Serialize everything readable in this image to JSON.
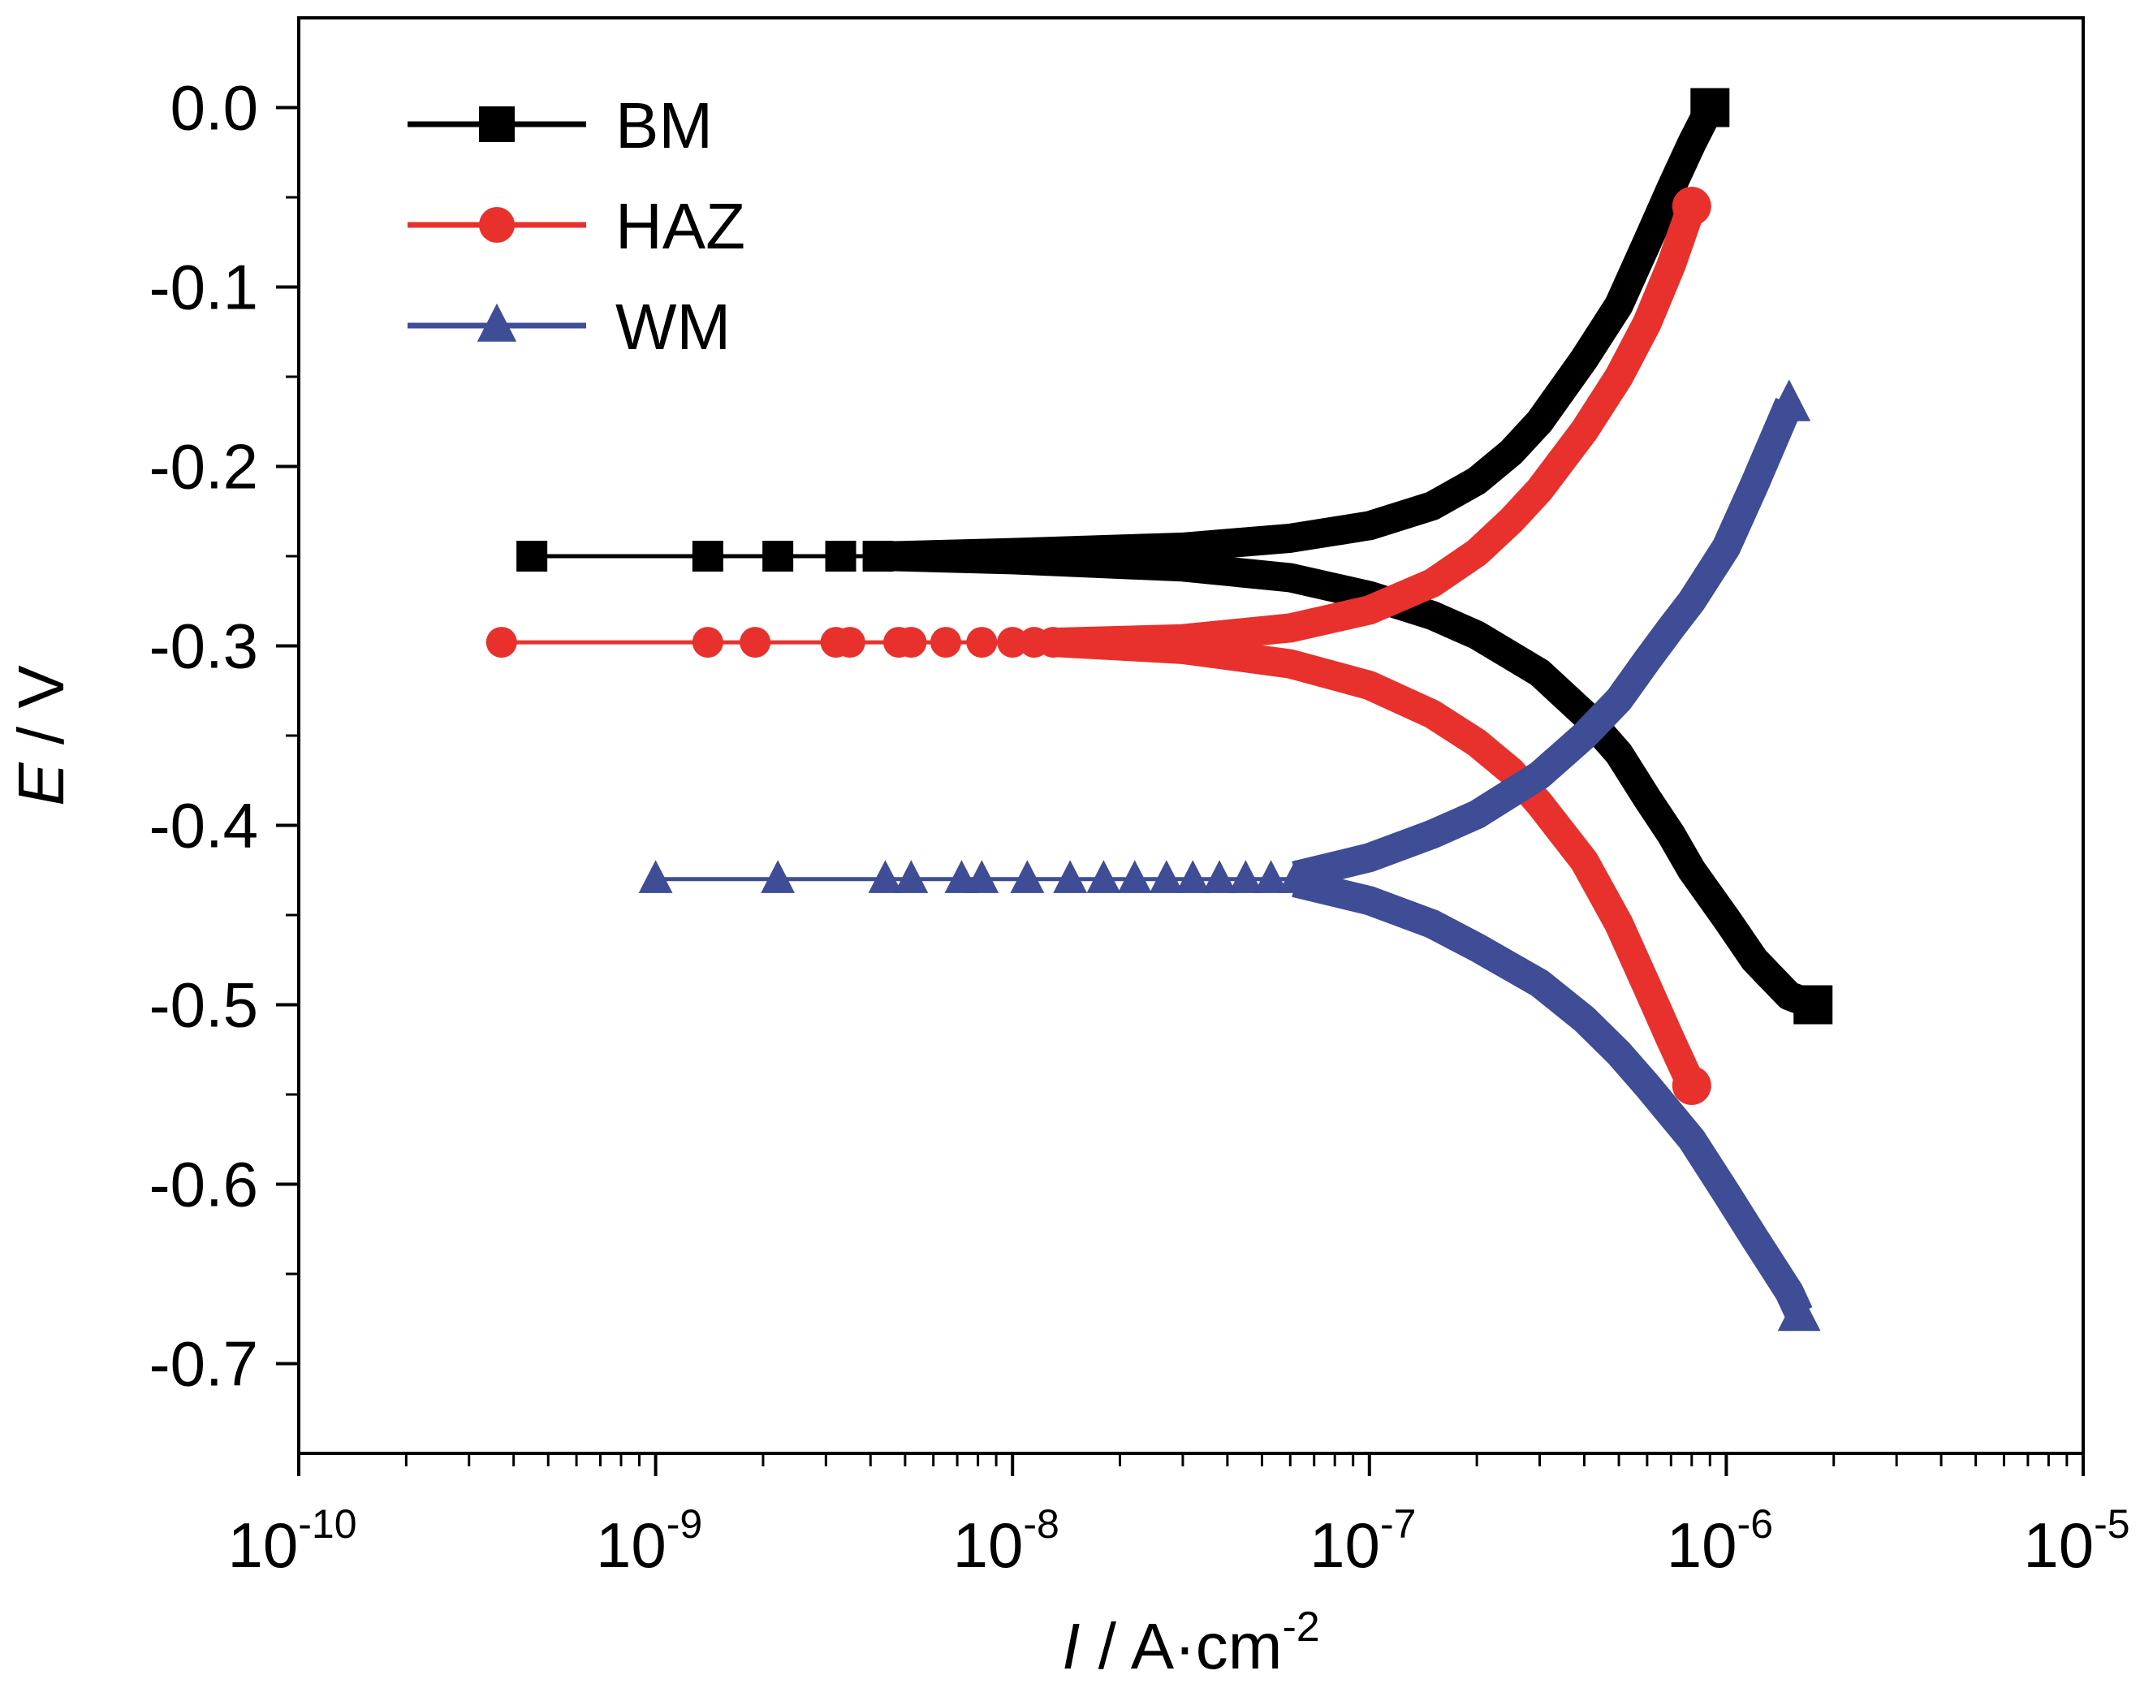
{
  "chart_data": {
    "type": "line",
    "xscale": "log",
    "xlim": [
      1e-10,
      1e-05
    ],
    "ylim": [
      -0.75,
      0.05
    ],
    "xlabel": {
      "italic": "I",
      "text": " / A·cm",
      "sup": "-2"
    },
    "ylabel": {
      "italic": "E",
      "text": " / V"
    },
    "x_ticks": [
      {
        "base": "10",
        "exp": "-10",
        "value": 1e-10
      },
      {
        "base": "10",
        "exp": "-9",
        "value": 1e-09
      },
      {
        "base": "10",
        "exp": "-8",
        "value": 1e-08
      },
      {
        "base": "10",
        "exp": "-7",
        "value": 1e-07
      },
      {
        "base": "10",
        "exp": "-6",
        "value": 1e-06
      },
      {
        "base": "10",
        "exp": "-5",
        "value": 1e-05
      }
    ],
    "y_ticks": [
      {
        "label": "0.0",
        "value": 0.0
      },
      {
        "label": "-0.1",
        "value": -0.1
      },
      {
        "label": "-0.2",
        "value": -0.2
      },
      {
        "label": "-0.3",
        "value": -0.3
      },
      {
        "label": "-0.4",
        "value": -0.4
      },
      {
        "label": "-0.5",
        "value": -0.5
      },
      {
        "label": "-0.6",
        "value": -0.6
      },
      {
        "label": "-0.7",
        "value": -0.7
      }
    ],
    "legend": {
      "placement": "top-left"
    },
    "series": [
      {
        "name": "BM",
        "color": "#000000",
        "marker": "square",
        "markers": [
          {
            "x": 4.5e-10,
            "y": -0.25
          },
          {
            "x": 1.4e-09,
            "y": -0.25
          },
          {
            "x": 2.2e-09,
            "y": -0.25
          },
          {
            "x": 3.3e-09,
            "y": -0.25
          },
          {
            "x": 4.2e-09,
            "y": -0.25
          }
        ],
        "anodic": [
          {
            "x": 4.2e-09,
            "y": -0.25
          },
          {
            "x": 1e-08,
            "y": -0.248
          },
          {
            "x": 3e-08,
            "y": -0.245
          },
          {
            "x": 6e-08,
            "y": -0.24
          },
          {
            "x": 1e-07,
            "y": -0.233
          },
          {
            "x": 1.5e-07,
            "y": -0.222
          },
          {
            "x": 2e-07,
            "y": -0.208
          },
          {
            "x": 2.5e-07,
            "y": -0.192
          },
          {
            "x": 3e-07,
            "y": -0.175
          },
          {
            "x": 4e-07,
            "y": -0.14
          },
          {
            "x": 5e-07,
            "y": -0.11
          },
          {
            "x": 6e-07,
            "y": -0.075
          },
          {
            "x": 7e-07,
            "y": -0.045
          },
          {
            "x": 8e-07,
            "y": -0.02
          },
          {
            "x": 9e-07,
            "y": 0.0
          }
        ],
        "cathodic": [
          {
            "x": 4.2e-09,
            "y": -0.25
          },
          {
            "x": 1e-08,
            "y": -0.252
          },
          {
            "x": 3e-08,
            "y": -0.256
          },
          {
            "x": 6e-08,
            "y": -0.262
          },
          {
            "x": 1e-07,
            "y": -0.272
          },
          {
            "x": 1.5e-07,
            "y": -0.283
          },
          {
            "x": 2e-07,
            "y": -0.294
          },
          {
            "x": 3e-07,
            "y": -0.315
          },
          {
            "x": 4e-07,
            "y": -0.338
          },
          {
            "x": 5e-07,
            "y": -0.36
          },
          {
            "x": 6e-07,
            "y": -0.385
          },
          {
            "x": 7e-07,
            "y": -0.405
          },
          {
            "x": 8e-07,
            "y": -0.425
          },
          {
            "x": 1e-06,
            "y": -0.452
          },
          {
            "x": 1.2e-06,
            "y": -0.475
          },
          {
            "x": 1.5e-06,
            "y": -0.495
          },
          {
            "x": 1.75e-06,
            "y": -0.5
          }
        ]
      },
      {
        "name": "HAZ",
        "color": "#e8312c",
        "marker": "circle",
        "markers": [
          {
            "x": 3.7e-10,
            "y": -0.298
          },
          {
            "x": 1.4e-09,
            "y": -0.298
          },
          {
            "x": 1.9e-09,
            "y": -0.298
          },
          {
            "x": 3.2e-09,
            "y": -0.298
          },
          {
            "x": 3.5e-09,
            "y": -0.298
          },
          {
            "x": 4.8e-09,
            "y": -0.298
          },
          {
            "x": 5.2e-09,
            "y": -0.298
          },
          {
            "x": 6.5e-09,
            "y": -0.298
          },
          {
            "x": 8.2e-09,
            "y": -0.298
          },
          {
            "x": 1e-08,
            "y": -0.298
          },
          {
            "x": 1.15e-08,
            "y": -0.298
          },
          {
            "x": 1.3e-08,
            "y": -0.298
          }
        ],
        "anodic": [
          {
            "x": 1.3e-08,
            "y": -0.298
          },
          {
            "x": 3e-08,
            "y": -0.296
          },
          {
            "x": 6e-08,
            "y": -0.29
          },
          {
            "x": 1e-07,
            "y": -0.28
          },
          {
            "x": 1.5e-07,
            "y": -0.265
          },
          {
            "x": 2e-07,
            "y": -0.248
          },
          {
            "x": 2.5e-07,
            "y": -0.23
          },
          {
            "x": 3e-07,
            "y": -0.213
          },
          {
            "x": 4e-07,
            "y": -0.18
          },
          {
            "x": 5e-07,
            "y": -0.15
          },
          {
            "x": 6e-07,
            "y": -0.12
          },
          {
            "x": 7e-07,
            "y": -0.088
          },
          {
            "x": 8e-07,
            "y": -0.055
          }
        ],
        "cathodic": [
          {
            "x": 1.3e-08,
            "y": -0.298
          },
          {
            "x": 3e-08,
            "y": -0.302
          },
          {
            "x": 6e-08,
            "y": -0.31
          },
          {
            "x": 1e-07,
            "y": -0.322
          },
          {
            "x": 1.5e-07,
            "y": -0.338
          },
          {
            "x": 2e-07,
            "y": -0.354
          },
          {
            "x": 2.5e-07,
            "y": -0.37
          },
          {
            "x": 3e-07,
            "y": -0.388
          },
          {
            "x": 4e-07,
            "y": -0.42
          },
          {
            "x": 5e-07,
            "y": -0.455
          },
          {
            "x": 6e-07,
            "y": -0.49
          },
          {
            "x": 7e-07,
            "y": -0.52
          },
          {
            "x": 8e-07,
            "y": -0.545
          }
        ]
      },
      {
        "name": "WM",
        "color": "#3f4c96",
        "marker": "triangle",
        "markers": [
          {
            "x": 1e-09,
            "y": -0.43
          },
          {
            "x": 2.2e-09,
            "y": -0.43
          },
          {
            "x": 4.4e-09,
            "y": -0.43
          },
          {
            "x": 5.2e-09,
            "y": -0.43
          },
          {
            "x": 7.2e-09,
            "y": -0.43
          },
          {
            "x": 8.2e-09,
            "y": -0.43
          },
          {
            "x": 1.1e-08,
            "y": -0.43
          },
          {
            "x": 1.45e-08,
            "y": -0.43
          },
          {
            "x": 1.8e-08,
            "y": -0.43
          },
          {
            "x": 2.2e-08,
            "y": -0.43
          },
          {
            "x": 2.7e-08,
            "y": -0.43
          },
          {
            "x": 3.2e-08,
            "y": -0.43
          },
          {
            "x": 3.8e-08,
            "y": -0.43
          },
          {
            "x": 4.5e-08,
            "y": -0.43
          },
          {
            "x": 5.3e-08,
            "y": -0.43
          },
          {
            "x": 6.2e-08,
            "y": -0.43
          }
        ],
        "anodic": [
          {
            "x": 6.2e-08,
            "y": -0.428
          },
          {
            "x": 1e-07,
            "y": -0.418
          },
          {
            "x": 1.5e-07,
            "y": -0.405
          },
          {
            "x": 2e-07,
            "y": -0.394
          },
          {
            "x": 3e-07,
            "y": -0.372
          },
          {
            "x": 4e-07,
            "y": -0.35
          },
          {
            "x": 5e-07,
            "y": -0.33
          },
          {
            "x": 6e-07,
            "y": -0.308
          },
          {
            "x": 7e-07,
            "y": -0.29
          },
          {
            "x": 8e-07,
            "y": -0.275
          },
          {
            "x": 1e-06,
            "y": -0.245
          },
          {
            "x": 1.2e-06,
            "y": -0.21
          },
          {
            "x": 1.5e-06,
            "y": -0.165
          }
        ],
        "cathodic": [
          {
            "x": 6.2e-08,
            "y": -0.432
          },
          {
            "x": 1e-07,
            "y": -0.442
          },
          {
            "x": 1.5e-07,
            "y": -0.455
          },
          {
            "x": 2e-07,
            "y": -0.468
          },
          {
            "x": 3e-07,
            "y": -0.488
          },
          {
            "x": 4e-07,
            "y": -0.508
          },
          {
            "x": 5e-07,
            "y": -0.527
          },
          {
            "x": 6e-07,
            "y": -0.545
          },
          {
            "x": 8e-07,
            "y": -0.575
          },
          {
            "x": 1e-06,
            "y": -0.605
          },
          {
            "x": 1.2e-06,
            "y": -0.63
          },
          {
            "x": 1.5e-06,
            "y": -0.66
          },
          {
            "x": 1.6e-06,
            "y": -0.672
          }
        ]
      }
    ]
  }
}
